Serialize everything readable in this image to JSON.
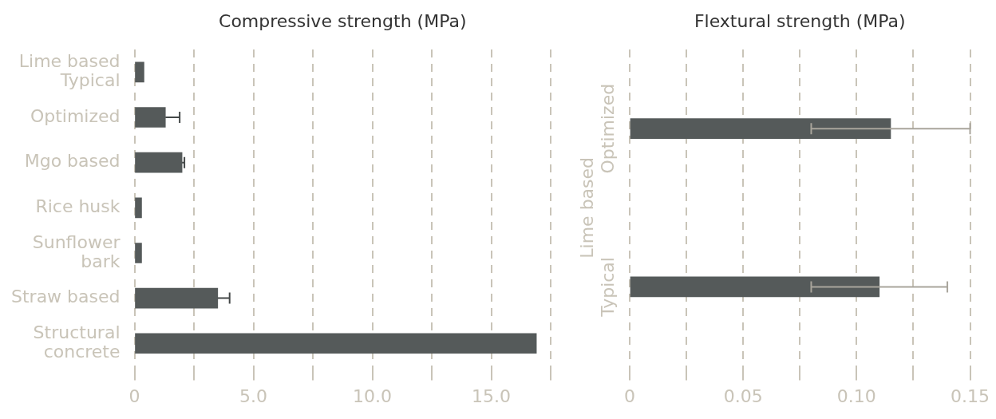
{
  "chart_data": [
    {
      "type": "bar",
      "orientation": "horizontal",
      "title": "Compressive strength (MPa)",
      "categories": [
        "Lime based\nTypical",
        "Optimized",
        "Mgo based",
        "Rice husk",
        "Sunflower\nbark",
        "Straw based",
        "Structural\nconcrete"
      ],
      "values": [
        0.4,
        1.3,
        2.0,
        0.3,
        0.3,
        3.5,
        16.9
      ],
      "errors": [
        null,
        [
          1.3,
          1.9
        ],
        [
          2.0,
          2.1
        ],
        null,
        null,
        [
          3.5,
          4.0
        ],
        null
      ],
      "color": "#555a5a",
      "xlim": [
        0,
        17.5
      ],
      "xticks": [
        0,
        {
          "value": 2.5,
          "label": null
        },
        {
          "value": 5,
          "label": "5.0"
        },
        {
          "value": 7.5,
          "label": null
        },
        {
          "value": 10,
          "label": "10.0"
        },
        {
          "value": 12.5,
          "label": null
        },
        {
          "value": 15,
          "label": "15.0"
        },
        {
          "value": 17.5,
          "label": null
        }
      ],
      "grid": "x"
    },
    {
      "type": "bar",
      "orientation": "horizontal",
      "title": "Flextural strength (MPa)",
      "ylabel": "Lime based",
      "categories": [
        "Optimized",
        "Typical"
      ],
      "values": [
        0.115,
        0.11
      ],
      "errors": [
        [
          0.08,
          0.15
        ],
        [
          0.08,
          0.14
        ]
      ],
      "color": "#555a5a",
      "xlim": [
        0,
        0.15
      ],
      "xticks": [
        0,
        {
          "value": 0.025,
          "label": null
        },
        0.05,
        {
          "value": 0.075,
          "label": null
        },
        {
          "value": 0.1,
          "label": "0.10"
        },
        {
          "value": 0.125,
          "label": null
        },
        0.15
      ],
      "grid": "x"
    }
  ]
}
